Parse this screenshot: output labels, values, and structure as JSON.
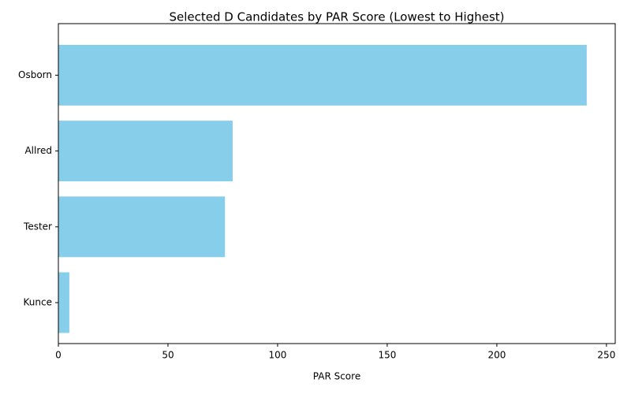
{
  "chart_data": {
    "type": "barh",
    "title": "Selected D Candidates by PAR Score (Lowest to Highest)",
    "x_label": "PAR Score",
    "categories": [
      "Kunce",
      "Tester",
      "Allred",
      "Osborn"
    ],
    "values": [
      5,
      76,
      79.5,
      241
    ],
    "color": "#87ceeb",
    "xlim": [
      0,
      254
    ],
    "xticks": [
      0,
      50,
      100,
      150,
      200,
      250
    ],
    "grid": false
  }
}
